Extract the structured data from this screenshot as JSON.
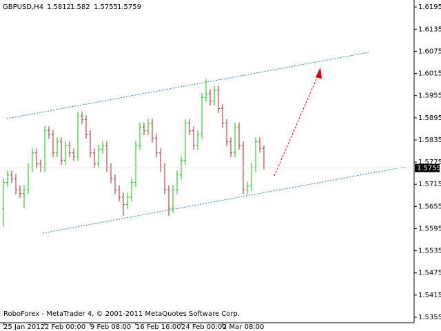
{
  "chart_data": {
    "type": "ohlc",
    "symbol": "GBPUSD,H4",
    "header_values": [
      1.5812,
      1.582,
      1.5755,
      1.5759
    ],
    "footer": "RoboForex - MetaTrader 4, © 2001-2011 MetaQuotes Software Corp.",
    "current_price": 1.5759,
    "categories": [
      "25 Jan 2012",
      null,
      null,
      null,
      null,
      null,
      null,
      null,
      null,
      null,
      "2 Feb 00:00",
      null,
      null,
      null,
      null,
      null,
      null,
      null,
      null,
      null,
      null,
      "9 Feb 08:00",
      null,
      null,
      null,
      null,
      null,
      null,
      null,
      null,
      null,
      null,
      "16 Feb 16:00",
      null,
      null,
      null,
      null,
      null,
      null,
      null,
      null,
      null,
      null,
      "24 Feb 00:00",
      null,
      null,
      null,
      null,
      null,
      null,
      null,
      null,
      null,
      "2 Mar 08:00",
      null,
      null,
      null,
      null,
      null,
      null,
      null,
      null,
      null,
      null
    ],
    "open": [
      1.565,
      1.572,
      1.574,
      1.573,
      1.57,
      1.569,
      1.57,
      1.576,
      1.58,
      1.577,
      1.576,
      1.586,
      1.585,
      1.58,
      1.583,
      1.578,
      1.582,
      1.58,
      1.579,
      1.59,
      1.589,
      1.585,
      1.58,
      1.577,
      1.581,
      1.582,
      1.576,
      1.573,
      1.57,
      1.568,
      1.566,
      1.568,
      1.572,
      1.582,
      1.587,
      1.586,
      1.588,
      1.584,
      1.58,
      1.576,
      1.57,
      1.565,
      1.57,
      1.574,
      1.578,
      1.588,
      1.586,
      1.582,
      1.585,
      1.595,
      1.596,
      1.594,
      1.597,
      1.592,
      1.588,
      1.583,
      1.58,
      1.587,
      1.582,
      1.57,
      1.571,
      1.576,
      1.583,
      1.5812
    ],
    "high": [
      1.5732,
      1.5752,
      1.5752,
      1.5742,
      1.5712,
      1.5712,
      1.5772,
      1.5812,
      1.5812,
      1.5782,
      1.5872,
      1.5872,
      1.5862,
      1.5842,
      1.5842,
      1.5832,
      1.5832,
      1.5812,
      1.5912,
      1.5912,
      1.5902,
      1.5862,
      1.5812,
      1.5822,
      1.5832,
      1.5832,
      1.5772,
      1.5742,
      1.5712,
      1.5692,
      1.5692,
      1.5732,
      1.5832,
      1.5882,
      1.5882,
      1.5892,
      1.5892,
      1.5852,
      1.5812,
      1.5772,
      1.5712,
      1.5712,
      1.5752,
      1.5792,
      1.5892,
      1.5892,
      1.5872,
      1.5862,
      1.5962,
      1.6,
      1.5972,
      1.5982,
      1.5982,
      1.5932,
      1.5892,
      1.5842,
      1.5882,
      1.5882,
      1.5832,
      1.5722,
      1.5772,
      1.5842,
      1.5842,
      1.582
    ],
    "low": [
      1.56,
      1.5708,
      1.5718,
      1.5688,
      1.5678,
      1.565,
      1.5688,
      1.5748,
      1.5758,
      1.5748,
      1.5748,
      1.5838,
      1.5788,
      1.5788,
      1.5768,
      1.5768,
      1.5788,
      1.5778,
      1.5778,
      1.5878,
      1.5838,
      1.5788,
      1.5758,
      1.5758,
      1.5798,
      1.5748,
      1.5718,
      1.5688,
      1.5668,
      1.563,
      1.5648,
      1.5668,
      1.5708,
      1.5808,
      1.5848,
      1.5848,
      1.5828,
      1.5788,
      1.5748,
      1.5688,
      1.563,
      1.5638,
      1.5688,
      1.5728,
      1.5768,
      1.5848,
      1.5808,
      1.5808,
      1.5838,
      1.5938,
      1.5928,
      1.5928,
      1.5908,
      1.5868,
      1.5818,
      1.5788,
      1.5788,
      1.5808,
      1.5688,
      1.5688,
      1.5698,
      1.5748,
      1.58,
      1.5755
    ],
    "close": [
      1.572,
      1.574,
      1.573,
      1.57,
      1.569,
      1.57,
      1.576,
      1.58,
      1.577,
      1.576,
      1.586,
      1.585,
      1.58,
      1.583,
      1.578,
      1.582,
      1.58,
      1.579,
      1.59,
      1.589,
      1.585,
      1.58,
      1.577,
      1.581,
      1.582,
      1.576,
      1.573,
      1.57,
      1.568,
      1.566,
      1.568,
      1.572,
      1.582,
      1.587,
      1.586,
      1.588,
      1.584,
      1.58,
      1.576,
      1.57,
      1.565,
      1.57,
      1.574,
      1.578,
      1.588,
      1.586,
      1.582,
      1.585,
      1.595,
      1.596,
      1.594,
      1.597,
      1.592,
      1.588,
      1.583,
      1.58,
      1.587,
      1.582,
      1.57,
      1.571,
      1.576,
      1.583,
      1.5812,
      1.5759
    ],
    "up_color": "#00c800",
    "down_color": "#b22222",
    "ylim": [
      1.534,
      1.6214
    ],
    "yticks": [
      1.6195,
      1.6135,
      1.6075,
      1.6015,
      1.5955,
      1.5895,
      1.5835,
      1.5775,
      1.5715,
      1.5655,
      1.5595,
      1.5535,
      1.5475,
      1.5415,
      1.5355
    ]
  }
}
